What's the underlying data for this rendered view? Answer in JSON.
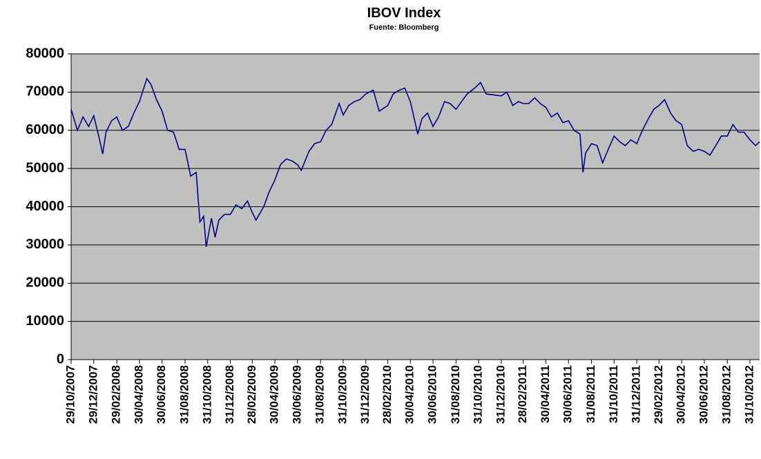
{
  "chart_data": {
    "type": "line",
    "title": "IBOV Index",
    "subtitle": "Fuente: Bloomberg",
    "color": "#000080",
    "background": "#c0c0c0",
    "grid": true,
    "ylim": [
      0,
      80000
    ],
    "yticks": [
      0,
      10000,
      20000,
      30000,
      40000,
      50000,
      60000,
      70000,
      80000
    ],
    "xlim": [
      "29/10/2007",
      "26/11/2012"
    ],
    "xticks": [
      "29/10/2007",
      "29/12/2007",
      "29/02/2008",
      "30/04/2008",
      "30/06/2008",
      "31/08/2008",
      "31/10/2008",
      "31/12/2008",
      "28/02/2009",
      "30/04/2009",
      "30/06/2009",
      "31/08/2009",
      "31/10/2009",
      "31/12/2009",
      "28/02/2010",
      "30/04/2010",
      "30/06/2010",
      "31/08/2010",
      "31/10/2010",
      "31/12/2010",
      "28/02/2011",
      "30/04/2011",
      "30/06/2011",
      "31/08/2011",
      "31/10/2011",
      "31/12/2011",
      "29/02/2012",
      "30/04/2012",
      "30/06/2012",
      "31/08/2012",
      "31/10/2012"
    ],
    "x": [
      "29/10/2007",
      "15/11/2007",
      "30/11/2007",
      "15/12/2007",
      "29/12/2007",
      "15/01/2008",
      "22/01/2008",
      "31/01/2008",
      "15/02/2008",
      "29/02/2008",
      "15/03/2008",
      "31/03/2008",
      "15/04/2008",
      "30/04/2008",
      "20/05/2008",
      "31/05/2008",
      "15/06/2008",
      "30/06/2008",
      "15/07/2008",
      "31/07/2008",
      "15/08/2008",
      "31/08/2008",
      "15/09/2008",
      "30/09/2008",
      "10/10/2008",
      "20/10/2008",
      "27/10/2008",
      "10/11/2008",
      "20/11/2008",
      "30/11/2008",
      "15/12/2008",
      "31/12/2008",
      "15/01/2009",
      "31/01/2009",
      "15/02/2009",
      "28/02/2009",
      "10/03/2009",
      "31/03/2009",
      "15/04/2009",
      "30/04/2009",
      "15/05/2009",
      "31/05/2009",
      "15/06/2009",
      "30/06/2009",
      "10/07/2009",
      "31/07/2009",
      "15/08/2009",
      "31/08/2009",
      "15/09/2009",
      "30/09/2009",
      "20/10/2009",
      "31/10/2009",
      "15/11/2009",
      "30/11/2009",
      "15/12/2009",
      "31/12/2009",
      "20/01/2010",
      "05/02/2010",
      "28/02/2010",
      "15/03/2010",
      "31/03/2010",
      "15/04/2010",
      "30/04/2010",
      "20/05/2010",
      "31/05/2010",
      "15/06/2010",
      "30/06/2010",
      "15/07/2010",
      "31/07/2010",
      "15/08/2010",
      "31/08/2010",
      "15/09/2010",
      "30/09/2010",
      "20/10/2010",
      "05/11/2010",
      "20/11/2010",
      "31/12/2010",
      "15/01/2011",
      "31/01/2011",
      "15/02/2011",
      "28/02/2011",
      "15/03/2011",
      "31/03/2011",
      "15/04/2011",
      "30/04/2011",
      "15/05/2011",
      "31/05/2011",
      "15/06/2011",
      "30/06/2011",
      "15/07/2011",
      "31/07/2011",
      "08/08/2011",
      "15/08/2011",
      "31/08/2011",
      "15/09/2011",
      "30/09/2011",
      "15/10/2011",
      "31/10/2011",
      "15/11/2011",
      "30/11/2011",
      "15/12/2011",
      "31/12/2011",
      "15/01/2012",
      "31/01/2012",
      "15/02/2012",
      "29/02/2012",
      "15/03/2012",
      "31/03/2012",
      "15/04/2012",
      "30/04/2012",
      "15/05/2012",
      "31/05/2012",
      "15/06/2012",
      "30/06/2012",
      "15/07/2012",
      "31/07/2012",
      "15/08/2012",
      "31/08/2012",
      "15/09/2012",
      "30/09/2012",
      "15/10/2012",
      "31/10/2012",
      "15/11/2012",
      "26/11/2012"
    ],
    "values": [
      65500,
      60000,
      63500,
      61000,
      63800,
      57000,
      53800,
      59500,
      62500,
      63500,
      60000,
      61000,
      64500,
      67500,
      73500,
      72000,
      68000,
      65000,
      60000,
      59500,
      55000,
      55000,
      48000,
      49000,
      36000,
      37500,
      29500,
      37000,
      32000,
      36500,
      38000,
      38000,
      40500,
      39500,
      41500,
      38500,
      36500,
      40000,
      44000,
      47000,
      51000,
      52500,
      52000,
      51000,
      49500,
      54500,
      56500,
      57000,
      60000,
      61500,
      67000,
      64000,
      66500,
      67500,
      68000,
      69500,
      70500,
      65000,
      66500,
      69500,
      70500,
      71000,
      67500,
      59000,
      63000,
      64500,
      61000,
      63500,
      67500,
      67000,
      65500,
      67500,
      69500,
      71000,
      72500,
      69500,
      69000,
      70000,
      66500,
      67500,
      67000,
      67000,
      68500,
      67000,
      66000,
      63500,
      64500,
      62000,
      62500,
      60000,
      59000,
      49000,
      54000,
      56500,
      56000,
      51500,
      55000,
      58500,
      57000,
      56000,
      57500,
      56500,
      60000,
      63000,
      65500,
      66500,
      68000,
      64500,
      62500,
      61500,
      56000,
      54500,
      55000,
      54500,
      53500,
      56000,
      58500,
      58500,
      61500,
      59500,
      59500,
      57500,
      56000,
      57000
    ]
  }
}
